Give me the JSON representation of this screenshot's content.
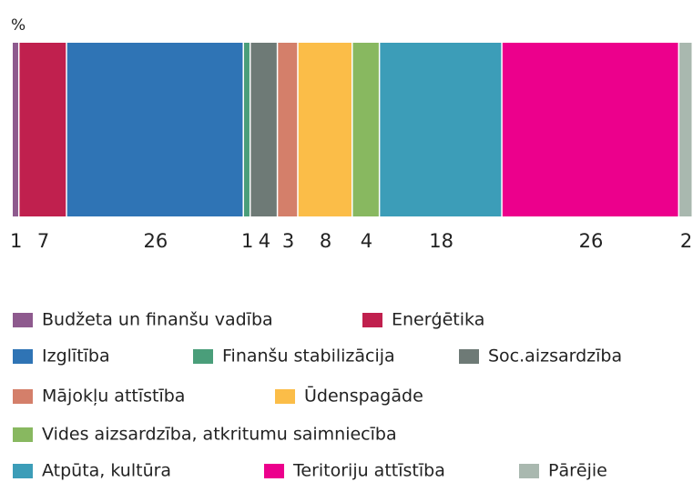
{
  "chart_data": {
    "type": "stacked_bar",
    "axis_label": "%",
    "xlim": [
      0,
      100
    ],
    "series": [
      {
        "name": "Budžeta un finanšu vadība",
        "color": "#8e5a8e",
        "values": [
          1
        ]
      },
      {
        "name": "Enerģētika",
        "color": "#c0204e",
        "values": [
          7
        ]
      },
      {
        "name": "Izglītība",
        "color": "#2f74b5",
        "values": [
          26
        ]
      },
      {
        "name": "Finanšu stabilizācija",
        "color": "#4a9e7a",
        "values": [
          1
        ]
      },
      {
        "name": "Soc.aizsardzība",
        "color": "#6e7a76",
        "values": [
          4
        ]
      },
      {
        "name": "Mājokļu attīstība",
        "color": "#d47f6a",
        "values": [
          3
        ]
      },
      {
        "name": "Ūdenspagāde",
        "color": "#fbbd48",
        "values": [
          8
        ]
      },
      {
        "name": "Vides aizsardzība, atkritumu saimniecība",
        "color": "#88b860",
        "values": [
          4
        ]
      },
      {
        "name": "Atpūta, kultūra",
        "color": "#3c9db8",
        "values": [
          18
        ]
      },
      {
        "name": "Teritoriju attīstība",
        "color": "#ec008c",
        "values": [
          26
        ]
      },
      {
        "name": "Pārējie",
        "color": "#a9b8af",
        "values": [
          2
        ]
      }
    ]
  }
}
